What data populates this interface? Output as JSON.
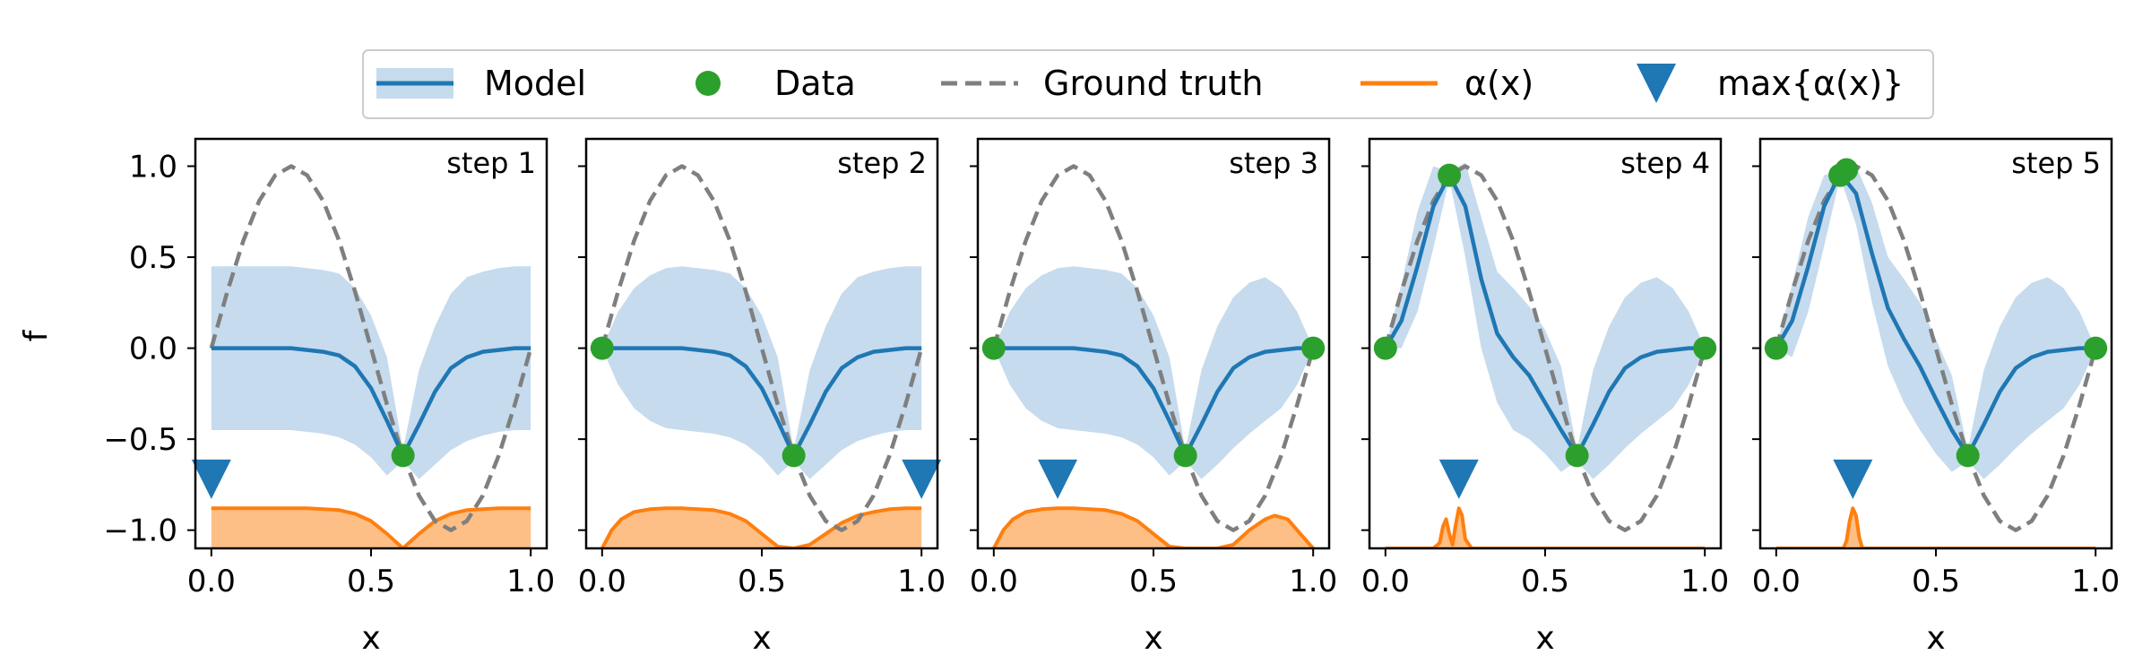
{
  "chart_data": {
    "type": "line",
    "ylabel": "f",
    "xlabel": "x",
    "xlim": [
      -0.05,
      1.05
    ],
    "ylim": [
      -1.1,
      1.15
    ],
    "x_ticks": [
      0.0,
      0.5,
      1.0
    ],
    "x_tick_labels": [
      "0.0",
      "0.5",
      "1.0"
    ],
    "y_ticks": [
      1.0,
      0.5,
      0.0,
      -0.5,
      -1.0
    ],
    "y_tick_labels": [
      "1.0",
      "0.5",
      "0.0",
      "−0.5",
      "−1.0"
    ],
    "legend": {
      "placement": "top-center",
      "entries": [
        {
          "name": "Model",
          "marker": "line-with-band",
          "color": "#1f77b4"
        },
        {
          "name": "Data",
          "marker": "circle",
          "color": "#2ca02c"
        },
        {
          "name": "Ground truth",
          "marker": "dashed-line",
          "color": "#7f7f7f"
        },
        {
          "name": "α(x)",
          "marker": "line",
          "color": "#ff7f0e"
        },
        {
          "name": "max{α(x)}",
          "marker": "triangle-down",
          "color": "#1f77b4"
        }
      ]
    },
    "colors": {
      "model": "#1f77b4",
      "band": "#c6dbed",
      "data": "#2ca02c",
      "truth": "#7f7f7f",
      "acq_line": "#ff7f0e",
      "acq_fill": "#fdbf86",
      "argmax": "#1f77b4"
    },
    "ground_truth": {
      "x": [
        0.0,
        0.05,
        0.1,
        0.15,
        0.2,
        0.25,
        0.3,
        0.35,
        0.4,
        0.45,
        0.5,
        0.55,
        0.6,
        0.65,
        0.7,
        0.75,
        0.8,
        0.85,
        0.9,
        0.95,
        1.0
      ],
      "y": [
        0.0,
        0.31,
        0.59,
        0.81,
        0.95,
        1.0,
        0.95,
        0.81,
        0.59,
        0.31,
        0.0,
        -0.31,
        -0.59,
        -0.81,
        -0.95,
        -1.0,
        -0.95,
        -0.81,
        -0.59,
        -0.31,
        0.0
      ]
    },
    "panels": [
      {
        "title": "step 1",
        "data_points": {
          "x": [
            0.6
          ],
          "y": [
            -0.59
          ]
        },
        "model": {
          "x": [
            0.0,
            0.05,
            0.1,
            0.15,
            0.2,
            0.25,
            0.3,
            0.35,
            0.4,
            0.45,
            0.5,
            0.55,
            0.6,
            0.65,
            0.7,
            0.75,
            0.8,
            0.85,
            0.9,
            0.95,
            1.0
          ],
          "mean": [
            0.0,
            0.0,
            0.0,
            0.0,
            0.0,
            0.0,
            -0.01,
            -0.02,
            -0.04,
            -0.1,
            -0.22,
            -0.4,
            -0.59,
            -0.42,
            -0.24,
            -0.11,
            -0.05,
            -0.02,
            -0.01,
            0.0,
            0.0
          ],
          "lower": [
            -0.45,
            -0.45,
            -0.45,
            -0.45,
            -0.45,
            -0.45,
            -0.46,
            -0.47,
            -0.49,
            -0.53,
            -0.6,
            -0.7,
            -0.62,
            -0.72,
            -0.64,
            -0.56,
            -0.51,
            -0.48,
            -0.46,
            -0.45,
            -0.45
          ],
          "upper": [
            0.45,
            0.45,
            0.45,
            0.45,
            0.45,
            0.45,
            0.44,
            0.43,
            0.41,
            0.33,
            0.18,
            -0.05,
            -0.56,
            -0.12,
            0.12,
            0.3,
            0.39,
            0.42,
            0.44,
            0.45,
            0.45
          ]
        },
        "acquisition": {
          "x": [
            0.0,
            0.05,
            0.1,
            0.15,
            0.2,
            0.25,
            0.3,
            0.35,
            0.4,
            0.45,
            0.5,
            0.55,
            0.6,
            0.65,
            0.7,
            0.75,
            0.8,
            0.85,
            0.9,
            0.95,
            1.0
          ],
          "y": [
            -0.88,
            -0.88,
            -0.88,
            -0.88,
            -0.88,
            -0.88,
            -0.88,
            -0.885,
            -0.89,
            -0.91,
            -0.95,
            -1.02,
            -1.1,
            -1.02,
            -0.95,
            -0.91,
            -0.89,
            -0.885,
            -0.88,
            -0.88,
            -0.88
          ]
        },
        "argmax": {
          "x": 0.0,
          "y": -0.72
        }
      },
      {
        "title": "step 2",
        "data_points": {
          "x": [
            0.0,
            0.6
          ],
          "y": [
            0.0,
            -0.59
          ]
        },
        "model": {
          "x": [
            0.0,
            0.05,
            0.1,
            0.15,
            0.2,
            0.25,
            0.3,
            0.35,
            0.4,
            0.45,
            0.5,
            0.55,
            0.6,
            0.65,
            0.7,
            0.75,
            0.8,
            0.85,
            0.9,
            0.95,
            1.0
          ],
          "mean": [
            0.0,
            0.0,
            0.0,
            0.0,
            0.0,
            0.0,
            -0.01,
            -0.02,
            -0.04,
            -0.1,
            -0.22,
            -0.4,
            -0.59,
            -0.42,
            -0.24,
            -0.11,
            -0.05,
            -0.02,
            -0.01,
            0.0,
            0.0
          ],
          "lower": [
            0.0,
            -0.2,
            -0.33,
            -0.4,
            -0.44,
            -0.45,
            -0.46,
            -0.47,
            -0.49,
            -0.53,
            -0.6,
            -0.7,
            -0.62,
            -0.72,
            -0.64,
            -0.56,
            -0.51,
            -0.48,
            -0.46,
            -0.45,
            -0.45
          ],
          "upper": [
            0.0,
            0.2,
            0.33,
            0.4,
            0.44,
            0.45,
            0.44,
            0.43,
            0.41,
            0.33,
            0.18,
            -0.05,
            -0.56,
            -0.12,
            0.12,
            0.3,
            0.39,
            0.42,
            0.44,
            0.45,
            0.45
          ]
        },
        "acquisition": {
          "x": [
            0.0,
            0.03,
            0.06,
            0.1,
            0.15,
            0.2,
            0.25,
            0.3,
            0.35,
            0.4,
            0.45,
            0.5,
            0.55,
            0.6,
            0.65,
            0.7,
            0.75,
            0.8,
            0.85,
            0.9,
            0.95,
            1.0
          ],
          "y": [
            -1.1,
            -1.0,
            -0.94,
            -0.9,
            -0.885,
            -0.88,
            -0.88,
            -0.885,
            -0.89,
            -0.91,
            -0.95,
            -1.02,
            -1.09,
            -1.1,
            -1.08,
            -1.02,
            -0.96,
            -0.92,
            -0.9,
            -0.885,
            -0.88,
            -0.88
          ]
        },
        "argmax": {
          "x": 1.0,
          "y": -0.72
        }
      },
      {
        "title": "step 3",
        "data_points": {
          "x": [
            0.0,
            0.6,
            1.0
          ],
          "y": [
            0.0,
            -0.59,
            0.0
          ]
        },
        "model": {
          "x": [
            0.0,
            0.05,
            0.1,
            0.15,
            0.2,
            0.25,
            0.3,
            0.35,
            0.4,
            0.45,
            0.5,
            0.55,
            0.6,
            0.65,
            0.7,
            0.75,
            0.8,
            0.85,
            0.9,
            0.95,
            1.0
          ],
          "mean": [
            0.0,
            0.0,
            0.0,
            0.0,
            0.0,
            0.0,
            -0.01,
            -0.02,
            -0.04,
            -0.1,
            -0.22,
            -0.4,
            -0.59,
            -0.42,
            -0.24,
            -0.11,
            -0.05,
            -0.02,
            -0.01,
            0.0,
            0.0
          ],
          "lower": [
            0.0,
            -0.2,
            -0.33,
            -0.4,
            -0.44,
            -0.45,
            -0.46,
            -0.47,
            -0.49,
            -0.53,
            -0.6,
            -0.7,
            -0.62,
            -0.72,
            -0.64,
            -0.55,
            -0.47,
            -0.4,
            -0.33,
            -0.2,
            0.0
          ],
          "upper": [
            0.0,
            0.2,
            0.33,
            0.4,
            0.44,
            0.45,
            0.44,
            0.43,
            0.41,
            0.33,
            0.18,
            -0.05,
            -0.56,
            -0.12,
            0.12,
            0.28,
            0.36,
            0.39,
            0.33,
            0.2,
            0.0
          ]
        },
        "acquisition": {
          "x": [
            0.0,
            0.03,
            0.06,
            0.1,
            0.15,
            0.2,
            0.25,
            0.3,
            0.35,
            0.4,
            0.45,
            0.5,
            0.55,
            0.6,
            0.65,
            0.7,
            0.75,
            0.8,
            0.85,
            0.88,
            0.92,
            0.96,
            1.0
          ],
          "y": [
            -1.1,
            -1.0,
            -0.94,
            -0.9,
            -0.885,
            -0.88,
            -0.88,
            -0.885,
            -0.89,
            -0.91,
            -0.95,
            -1.02,
            -1.09,
            -1.1,
            -1.1,
            -1.1,
            -1.08,
            -1.0,
            -0.94,
            -0.92,
            -0.94,
            -1.02,
            -1.1
          ]
        },
        "argmax": {
          "x": 0.2,
          "y": -0.72
        }
      },
      {
        "title": "step 4",
        "data_points": {
          "x": [
            0.0,
            0.2,
            0.6,
            1.0
          ],
          "y": [
            0.0,
            0.95,
            -0.59,
            0.0
          ]
        },
        "model": {
          "x": [
            0.0,
            0.05,
            0.1,
            0.15,
            0.2,
            0.25,
            0.3,
            0.35,
            0.4,
            0.45,
            0.5,
            0.55,
            0.6,
            0.65,
            0.7,
            0.75,
            0.8,
            0.85,
            0.9,
            0.95,
            1.0
          ],
          "mean": [
            0.0,
            0.15,
            0.45,
            0.78,
            0.95,
            0.78,
            0.38,
            0.08,
            -0.05,
            -0.15,
            -0.3,
            -0.45,
            -0.59,
            -0.42,
            -0.24,
            -0.11,
            -0.05,
            -0.02,
            -0.01,
            0.0,
            0.0
          ],
          "lower": [
            0.0,
            0.0,
            0.2,
            0.55,
            0.93,
            0.5,
            0.0,
            -0.3,
            -0.45,
            -0.5,
            -0.58,
            -0.68,
            -0.62,
            -0.72,
            -0.64,
            -0.55,
            -0.47,
            -0.4,
            -0.33,
            -0.2,
            0.0
          ],
          "upper": [
            0.0,
            0.35,
            0.75,
            1.0,
            0.97,
            1.02,
            0.72,
            0.42,
            0.33,
            0.23,
            0.1,
            -0.1,
            -0.56,
            -0.12,
            0.12,
            0.28,
            0.36,
            0.39,
            0.33,
            0.2,
            0.0
          ]
        },
        "acquisition": {
          "x": [
            0.0,
            0.15,
            0.17,
            0.18,
            0.19,
            0.2,
            0.21,
            0.22,
            0.23,
            0.24,
            0.25,
            0.27,
            0.3,
            1.0
          ],
          "y": [
            -1.1,
            -1.1,
            -1.07,
            -0.98,
            -0.94,
            -1.02,
            -1.08,
            -0.97,
            -0.88,
            -0.92,
            -1.05,
            -1.1,
            -1.1,
            -1.1
          ]
        },
        "argmax": {
          "x": 0.23,
          "y": -0.72
        }
      },
      {
        "title": "step 5",
        "data_points": {
          "x": [
            0.0,
            0.2,
            0.22,
            0.6,
            1.0
          ],
          "y": [
            0.0,
            0.95,
            0.98,
            -0.59,
            0.0
          ]
        },
        "model": {
          "x": [
            0.0,
            0.05,
            0.1,
            0.15,
            0.2,
            0.25,
            0.3,
            0.35,
            0.4,
            0.45,
            0.5,
            0.55,
            0.6,
            0.65,
            0.7,
            0.75,
            0.8,
            0.85,
            0.9,
            0.95,
            1.0
          ],
          "mean": [
            0.0,
            0.15,
            0.45,
            0.78,
            0.96,
            0.85,
            0.52,
            0.22,
            0.05,
            -0.1,
            -0.28,
            -0.45,
            -0.59,
            -0.42,
            -0.24,
            -0.11,
            -0.05,
            -0.02,
            -0.01,
            0.0,
            0.0
          ],
          "lower": [
            0.0,
            -0.05,
            0.2,
            0.56,
            0.94,
            0.68,
            0.25,
            -0.1,
            -0.3,
            -0.45,
            -0.58,
            -0.68,
            -0.62,
            -0.72,
            -0.64,
            -0.55,
            -0.47,
            -0.4,
            -0.33,
            -0.2,
            0.0
          ],
          "upper": [
            0.0,
            0.35,
            0.72,
            0.95,
            0.98,
            1.0,
            0.8,
            0.5,
            0.38,
            0.25,
            0.05,
            -0.15,
            -0.56,
            -0.12,
            0.12,
            0.28,
            0.36,
            0.39,
            0.33,
            0.2,
            0.0
          ]
        },
        "acquisition": {
          "x": [
            0.0,
            0.21,
            0.22,
            0.23,
            0.24,
            0.25,
            0.26,
            0.27,
            0.28,
            1.0
          ],
          "y": [
            -1.1,
            -1.1,
            -1.06,
            -0.95,
            -0.88,
            -0.92,
            -1.04,
            -1.1,
            -1.1,
            -1.1
          ]
        },
        "argmax": {
          "x": 0.24,
          "y": -0.72
        }
      }
    ]
  }
}
